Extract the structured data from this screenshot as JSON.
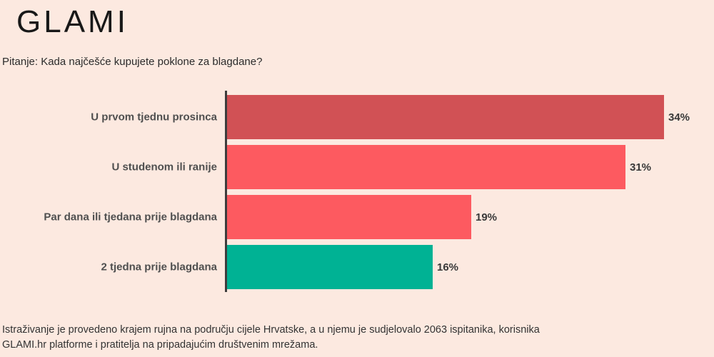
{
  "logo": {
    "text": "GLAMI"
  },
  "question": "Pitanje: Kada najčešće kupujete poklone za blagdane?",
  "footer": {
    "lines": [
      "Istraživanje je provedeno krajem rujna na području cijele Hrvatske, a u njemu je sudjelovalo 2063 ispitanika, korisnika",
      "GLAMI.hr platforme i pratitelja na pripadajućim društvenim mrežama."
    ]
  },
  "colors": {
    "background": "#fce9e0",
    "axis": "#3d3d3d",
    "logo": "#181818",
    "category_label": "#4f4f4f",
    "value_label": "#383838",
    "bar_dark_red": "#d15155",
    "bar_coral": "#fd5a60",
    "bar_teal": "#00b294"
  },
  "chart_data": {
    "type": "bar",
    "orientation": "horizontal",
    "title": "Pitanje: Kada najčešće kupujete poklone za blagdane?",
    "categories": [
      "U prvom tjednu prosinca",
      "U studenom ili ranije",
      "Par dana ili tjedana prije blagdana",
      "2 tjedna prije blagdana"
    ],
    "values": [
      34,
      31,
      19,
      16
    ],
    "value_labels": [
      "34%",
      "31%",
      "19%",
      "16%"
    ],
    "bar_colors": [
      "#d15155",
      "#fd5a60",
      "#fd5a60",
      "#00b294"
    ],
    "xlim": [
      0,
      34
    ],
    "grid": false,
    "value_label_position": "outside-end"
  }
}
